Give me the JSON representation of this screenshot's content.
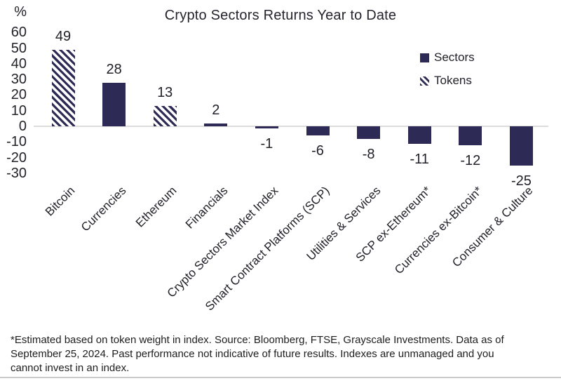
{
  "chart_data": {
    "type": "bar",
    "title": "Crypto Sectors Returns Year to Date",
    "ylabel": "%",
    "xlabel": "",
    "categories": [
      "Bitcoin",
      "Currencies",
      "Ethereum",
      "Financials",
      "Crypto Sectors Market Index",
      "Smart Contract Platforms (SCP)",
      "Utilities & Services",
      "SCP ex-Ethereum*",
      "Currencies ex-Bitcoin*",
      "Consumer & Culture"
    ],
    "values": [
      49,
      28,
      13,
      2,
      -1,
      -6,
      -8,
      -11,
      -12,
      -25
    ],
    "value_labels": [
      "49",
      "28",
      "13",
      "2",
      "-1",
      "-6",
      "-8",
      "-11",
      "-12",
      "-25"
    ],
    "bar_styles": [
      "hatched",
      "solid",
      "hatched",
      "solid",
      "solid",
      "solid",
      "solid",
      "solid",
      "solid",
      "solid"
    ],
    "yticks": [
      60,
      50,
      40,
      30,
      20,
      10,
      0,
      -10,
      -20,
      -30
    ],
    "ylim": [
      -30,
      65
    ],
    "grid": false,
    "legend_position": "upper right",
    "series_legend": [
      {
        "name": "Sectors",
        "style": "solid"
      },
      {
        "name": "Tokens",
        "style": "hatched"
      }
    ],
    "colors": {
      "bar_navy": "#2d2a55",
      "zero_line": "#dcdcdc"
    }
  },
  "footnote": {
    "lines": [
      "*Estimated based on token weight in index. Source: Bloomberg, FTSE, Grayscale Investments. Data as of",
      "September 25, 2024. Past performance not indicative of future results. Indexes are unmanaged and you",
      "cannot invest in an index."
    ]
  }
}
